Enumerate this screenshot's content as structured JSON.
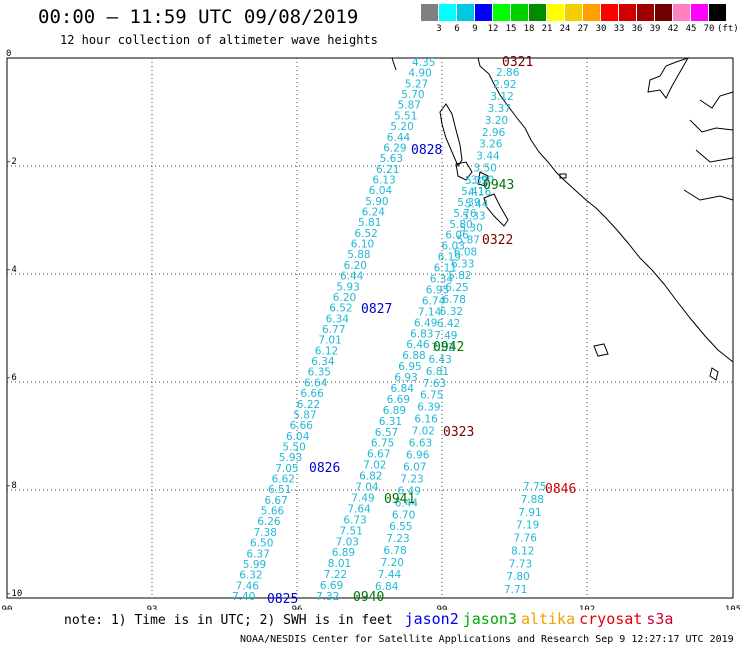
{
  "title": "00:00 – 11:59 UTC 09/08/2019",
  "subtitle": "12 hour collection of altimeter wave heights",
  "legend": {
    "colors": [
      "#808080",
      "#00ffff",
      "#00c8e0",
      "#0000ff",
      "#00ff00",
      "#00d000",
      "#008c00",
      "#ffff00",
      "#f0d000",
      "#ffa000",
      "#ff0000",
      "#d00000",
      "#a00000",
      "#700000",
      "#ff80c0",
      "#ff00ff",
      "#000000"
    ],
    "labels": [
      "3",
      "6",
      "9",
      "12",
      "15",
      "18",
      "21",
      "24",
      "27",
      "30",
      "33",
      "36",
      "39",
      "42",
      "45",
      "70",
      "(ft)"
    ]
  },
  "axes": {
    "x_ticks": [
      "90",
      "93",
      "96",
      "99",
      "102",
      "105"
    ],
    "y_ticks": [
      "0",
      "-2",
      "-4",
      "-6",
      "-8",
      "-10"
    ]
  },
  "passes": [
    {
      "label": "0825",
      "color": "#0000cc"
    },
    {
      "label": "0826",
      "color": "#0000cc"
    },
    {
      "label": "0827",
      "color": "#0000cc"
    },
    {
      "label": "0828",
      "color": "#0000cc"
    },
    {
      "label": "0940",
      "color": "#007700"
    },
    {
      "label": "0941",
      "color": "#007700"
    },
    {
      "label": "0942",
      "color": "#007700"
    },
    {
      "label": "0943",
      "color": "#007700"
    },
    {
      "label": "0321",
      "color": "#7a0000"
    },
    {
      "label": "0322",
      "color": "#7a0000"
    },
    {
      "label": "0323",
      "color": "#7a0000"
    },
    {
      "label": "0846",
      "color": "#cc0000"
    }
  ],
  "tracks": {
    "jason2_a": [
      "7.40",
      "7.46",
      "6.32",
      "5.99",
      "6.37",
      "6.50",
      "7.38",
      "6.26",
      "5.66",
      "6.67",
      "6.51",
      "6.62",
      "7.05",
      "5.93",
      "5.50",
      "6.04",
      "6.66",
      "5.87",
      "6.22",
      "6.66",
      "6.64",
      "6.35",
      "6.34",
      "6.12",
      "7.01",
      "6.77",
      "6.34",
      "6.52",
      "6.20",
      "5.93",
      "6.44",
      "6.20",
      "5.88",
      "6.10",
      "6.52",
      "5.81",
      "6.24",
      "5.90",
      "6.04",
      "6.13",
      "6.21",
      "5.63",
      "6.29",
      "6.44",
      "5.20",
      "5.51",
      "5.87",
      "5.70",
      "5.27",
      "4.90",
      "4.35"
    ],
    "jason3_b": [
      "7.32",
      "6.69",
      "7.22",
      "8.01",
      "6.89",
      "7.03",
      "7.51",
      "6.73",
      "7.64",
      "7.49",
      "7.04",
      "6.82",
      "7.02",
      "6.67",
      "6.75",
      "6.57",
      "6.31",
      "6.89",
      "6.69",
      "6.84",
      "6.93",
      "6.95",
      "6.88",
      "6.46",
      "6.83",
      "6.49",
      "7.14",
      "6.74",
      "6.95",
      "6.34",
      "6.11",
      "6.19",
      "6.03",
      "6.06",
      "5.80",
      "5.76",
      "5.39",
      "5.41",
      "5.39"
    ],
    "jason3_c": [
      "6.84",
      "7.44",
      "7.20",
      "6.78",
      "7.23",
      "6.55",
      "6.70",
      "6.44",
      "6.49",
      "7.23",
      "6.07",
      "6.96",
      "6.63",
      "7.02",
      "6.16",
      "6.39",
      "6.75",
      "7.63",
      "6.81",
      "6.43",
      "7.82",
      "7.49",
      "6.42",
      "6.32",
      "6.78",
      "6.25",
      "5.82",
      "6.33",
      "6.08",
      "5.87",
      "5.30",
      "5.33",
      "5.44",
      "4.16",
      "3.90",
      "3.50",
      "3.44",
      "3.26",
      "2.96",
      "3.20",
      "3.37",
      "3.12",
      "2.92",
      "2.86"
    ],
    "s3a_d": [
      "7.71",
      "7.80",
      "7.73",
      "8.12",
      "7.76",
      "7.19",
      "7.91",
      "7.88",
      "7.75"
    ]
  },
  "note": {
    "text": "note: 1) Time is in UTC; 2) SWH is in feet",
    "sats": [
      {
        "name": "jason2",
        "color": "#0000ee"
      },
      {
        "name": "jason3",
        "color": "#00aa00"
      },
      {
        "name": "altika",
        "color": "#f0a000"
      },
      {
        "name": "cryosat",
        "color": "#e00000"
      },
      {
        "name": "s3a",
        "color": "#cc0033"
      }
    ]
  },
  "credit": "NOAA/NESDIS Center for Satellite Applications and Research   Sep  9 12:27:17 UTC 2019"
}
